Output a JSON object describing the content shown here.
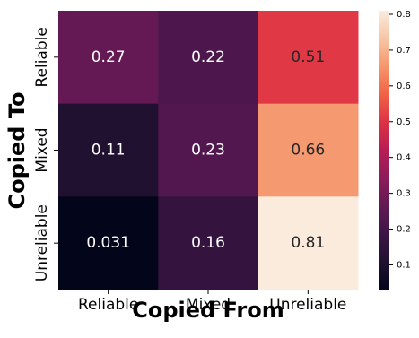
{
  "chart_data": {
    "type": "heatmap",
    "title": "",
    "xlabel": "Copied From",
    "ylabel": "Copied To",
    "x_categories": [
      "Reliable",
      "Mixed",
      "Unreliable"
    ],
    "y_categories": [
      "Reliable",
      "Mixed",
      "Unreliable"
    ],
    "values": [
      [
        0.27,
        0.22,
        0.51
      ],
      [
        0.11,
        0.23,
        0.66
      ],
      [
        0.031,
        0.16,
        0.81
      ]
    ],
    "cell_labels": [
      [
        "0.27",
        "0.22",
        "0.51"
      ],
      [
        "0.11",
        "0.23",
        "0.66"
      ],
      [
        "0.031",
        "0.16",
        "0.81"
      ]
    ],
    "colorbar": {
      "min": 0.031,
      "max": 0.81,
      "ticks": [
        0.1,
        0.2,
        0.3,
        0.4,
        0.5,
        0.6,
        0.7,
        0.8
      ],
      "tick_labels": [
        "0.1",
        "0.2",
        "0.3",
        "0.4",
        "0.5",
        "0.6",
        "0.7",
        "0.8"
      ],
      "colormap": "rocket"
    },
    "colors": {
      "low": "#03051a",
      "high": "#faebdd",
      "annotation_dark_bg": "#ffffff",
      "annotation_light_bg": "#262626"
    }
  }
}
